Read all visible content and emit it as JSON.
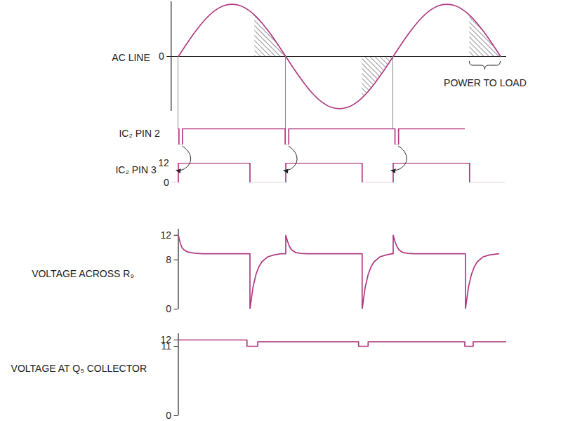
{
  "chart_data": [
    {
      "type": "line",
      "ylabel": "AC LINE",
      "color": "#b03a80",
      "line_style": "smooth",
      "xlim": [
        -12,
        550
      ],
      "ylim": [
        -1.05,
        1.05
      ],
      "yticks": [
        0
      ],
      "x": [
        0,
        15,
        30,
        45,
        60,
        75,
        90,
        105,
        120,
        128,
        135,
        150,
        165,
        180,
        195,
        210,
        225,
        240,
        255,
        270,
        285,
        300,
        308,
        315,
        330,
        345,
        360,
        375,
        390,
        405,
        420,
        435,
        450,
        465,
        480,
        488,
        495,
        510,
        525,
        540
      ],
      "values": [
        0,
        0.26,
        0.5,
        0.71,
        0.87,
        0.97,
        1,
        0.97,
        0.87,
        0.79,
        0.71,
        0.5,
        0.26,
        0,
        -0.26,
        -0.5,
        -0.71,
        -0.87,
        -0.97,
        -1,
        -0.97,
        -0.87,
        -0.79,
        -0.71,
        -0.5,
        -0.26,
        0,
        0.26,
        0.5,
        0.71,
        0.87,
        0.97,
        1,
        0.97,
        0.87,
        0.79,
        0.71,
        0.5,
        0.26,
        0
      ],
      "shaded": [
        [
          128,
          180
        ],
        [
          308,
          360
        ],
        [
          488,
          540
        ]
      ],
      "annotation": {
        "text": "POWER TO LOAD",
        "x": [
          488,
          540
        ]
      }
    },
    {
      "type": "line",
      "ylabel": "IC₂ PIN 2",
      "color": "#b03a80",
      "tick_labels": false,
      "xlim": [
        -12,
        550
      ],
      "ylim": [
        0,
        12
      ],
      "x": [
        0,
        1,
        1,
        7,
        7,
        179,
        179,
        185,
        185,
        363,
        363,
        369,
        369,
        479
      ],
      "values": [
        12,
        12,
        0,
        0,
        12,
        12,
        0,
        0,
        12,
        12,
        0,
        0,
        12,
        12
      ]
    },
    {
      "type": "line",
      "ylabel": "IC₂ PIN 3",
      "color": "#b03a80",
      "xlim": [
        -12,
        550
      ],
      "ylim": [
        0,
        12
      ],
      "yticks": [
        0,
        12
      ],
      "x": [
        -12,
        0,
        0,
        120,
        120,
        180,
        180,
        308,
        308,
        360,
        360,
        488,
        488,
        547
      ],
      "values": [
        0,
        0,
        12,
        12,
        0,
        0,
        12,
        12,
        0,
        0,
        12,
        12,
        0,
        0
      ]
    },
    {
      "type": "line",
      "ylabel": "VOLTAGE ACROSS R₉",
      "color": "#b03a80",
      "xlim": [
        0,
        550
      ],
      "ylim": [
        0,
        13
      ],
      "yticks": [
        0,
        8,
        12
      ],
      "x": [
        0,
        3,
        6,
        10,
        15,
        25,
        40,
        120,
        120,
        125,
        130,
        135,
        140,
        150,
        160,
        172,
        180,
        180,
        183,
        186,
        190,
        196,
        205,
        215,
        308,
        308,
        313,
        318,
        323,
        328,
        338,
        348,
        358,
        360,
        360,
        363,
        366,
        370,
        376,
        385,
        395,
        481,
        481,
        486,
        491,
        496,
        501,
        511,
        521,
        537
      ],
      "values": [
        12,
        10.8,
        10,
        9.6,
        9.3,
        9.1,
        9,
        9,
        0,
        3.5,
        5.6,
        6.9,
        7.7,
        8.5,
        8.8,
        9,
        9,
        12,
        11,
        10.2,
        9.6,
        9.2,
        9.05,
        9,
        9,
        0,
        3.5,
        5.6,
        6.9,
        7.7,
        8.5,
        8.8,
        9,
        9,
        12,
        11,
        10.2,
        9.6,
        9.2,
        9.05,
        9,
        9,
        0,
        3.5,
        5.6,
        6.9,
        7.7,
        8.5,
        8.8,
        9
      ]
    },
    {
      "type": "line",
      "ylabel": "VOLTAGE AT Q₅ COLLECTOR",
      "color": "#b03a80",
      "xlim": [
        0,
        550
      ],
      "ylim": [
        0,
        13
      ],
      "yticks": [
        0,
        11,
        12
      ],
      "x": [
        0,
        115,
        115,
        133,
        133,
        302,
        302,
        318,
        318,
        480,
        480,
        494,
        494,
        549
      ],
      "values": [
        12,
        12,
        11,
        11,
        11.7,
        11.7,
        11,
        11,
        11.7,
        11.7,
        11,
        11,
        11.7,
        11.7
      ]
    }
  ]
}
